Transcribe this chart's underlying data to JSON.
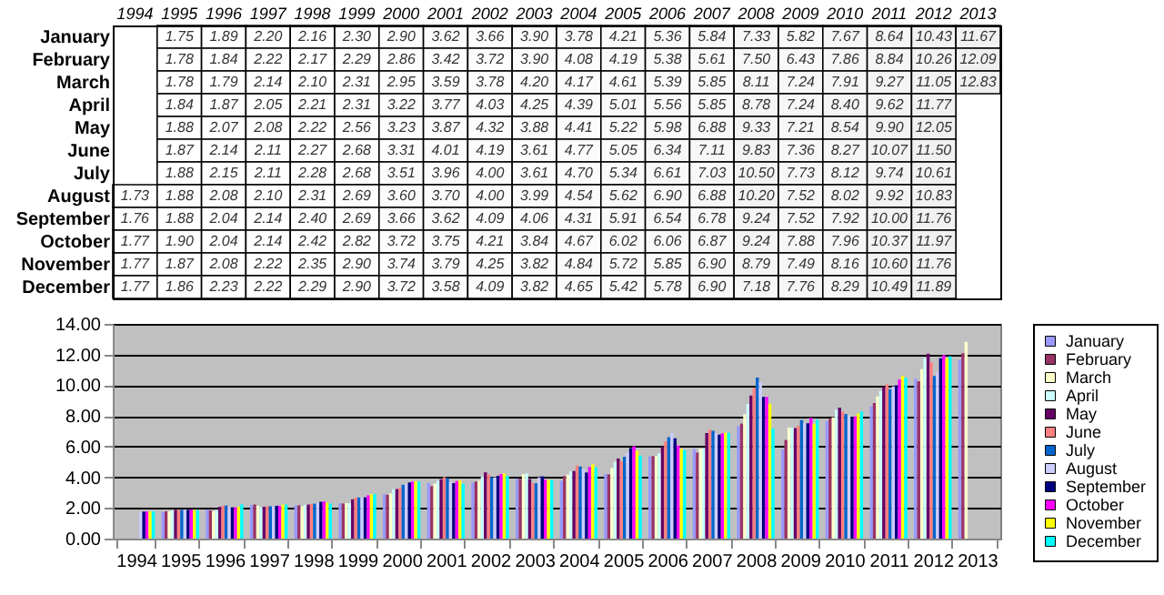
{
  "chart_data": [
    {
      "type": "heatmap",
      "categories": [
        "1994",
        "1995",
        "1996",
        "1997",
        "1998",
        "1999",
        "2000",
        "2001",
        "2002",
        "2003",
        "2004",
        "2005",
        "2006",
        "2007",
        "2008",
        "2009",
        "2010",
        "2011",
        "2012",
        "2013"
      ],
      "y_categories": [
        "January",
        "February",
        "March",
        "April",
        "May",
        "June",
        "July",
        "August",
        "September",
        "October",
        "November",
        "December"
      ],
      "cells": [
        [
          null,
          1.75,
          1.89,
          2.2,
          2.16,
          2.3,
          2.9,
          3.62,
          3.66,
          3.9,
          3.78,
          4.21,
          5.36,
          5.84,
          7.33,
          5.82,
          7.67,
          8.64,
          10.43,
          11.67
        ],
        [
          null,
          1.78,
          1.84,
          2.22,
          2.17,
          2.29,
          2.86,
          3.42,
          3.72,
          3.9,
          4.08,
          4.19,
          5.38,
          5.61,
          7.5,
          6.43,
          7.86,
          8.84,
          10.26,
          12.09
        ],
        [
          null,
          1.78,
          1.79,
          2.14,
          2.1,
          2.31,
          2.95,
          3.59,
          3.78,
          4.2,
          4.17,
          4.61,
          5.39,
          5.85,
          8.11,
          7.24,
          7.91,
          9.27,
          11.05,
          12.83
        ],
        [
          null,
          1.84,
          1.87,
          2.05,
          2.21,
          2.31,
          3.22,
          3.77,
          4.03,
          4.25,
          4.39,
          5.01,
          5.56,
          5.85,
          8.78,
          7.24,
          8.4,
          9.62,
          11.77,
          null
        ],
        [
          null,
          1.88,
          2.07,
          2.08,
          2.22,
          2.56,
          3.23,
          3.87,
          4.32,
          3.88,
          4.41,
          5.22,
          5.98,
          6.88,
          9.33,
          7.21,
          8.54,
          9.9,
          12.05,
          null
        ],
        [
          null,
          1.87,
          2.14,
          2.11,
          2.27,
          2.68,
          3.31,
          4.01,
          4.19,
          3.61,
          4.77,
          5.05,
          6.34,
          7.11,
          9.83,
          7.36,
          8.27,
          10.07,
          11.5,
          null
        ],
        [
          null,
          1.88,
          2.15,
          2.11,
          2.28,
          2.68,
          3.51,
          3.96,
          4.0,
          3.61,
          4.7,
          5.34,
          6.61,
          7.03,
          10.5,
          7.73,
          8.12,
          9.74,
          10.61,
          null
        ],
        [
          1.73,
          1.88,
          2.08,
          2.1,
          2.31,
          2.69,
          3.6,
          3.7,
          4.0,
          3.99,
          4.54,
          5.62,
          6.9,
          6.88,
          10.2,
          7.52,
          8.02,
          9.92,
          10.83,
          null
        ],
        [
          1.76,
          1.88,
          2.04,
          2.14,
          2.4,
          2.69,
          3.66,
          3.62,
          4.09,
          4.06,
          4.31,
          5.91,
          6.54,
          6.78,
          9.24,
          7.52,
          7.92,
          10.0,
          11.76,
          null
        ],
        [
          1.77,
          1.9,
          2.04,
          2.14,
          2.42,
          2.82,
          3.72,
          3.75,
          4.21,
          3.84,
          4.67,
          6.02,
          6.06,
          6.87,
          9.24,
          7.88,
          7.96,
          10.37,
          11.97,
          null
        ],
        [
          1.77,
          1.87,
          2.08,
          2.22,
          2.35,
          2.9,
          3.74,
          3.79,
          4.25,
          3.82,
          4.84,
          5.72,
          5.85,
          6.9,
          8.79,
          7.49,
          8.16,
          10.6,
          11.76,
          null
        ],
        [
          1.77,
          1.86,
          2.23,
          2.22,
          2.29,
          2.9,
          3.72,
          3.58,
          4.09,
          3.82,
          4.65,
          5.42,
          5.78,
          6.9,
          7.18,
          7.76,
          8.29,
          10.49,
          11.89,
          null
        ]
      ],
      "data_labels": true,
      "cell_labels": [
        [
          null,
          "1.75",
          "1.89",
          "2.20",
          "2.16",
          "2.30",
          "2.90",
          "3.62",
          "3.66",
          "3.90",
          "3.78",
          "4.21",
          "5.36",
          "5.84",
          "7.33",
          "5.82",
          "7.67",
          "8.64",
          "10.43",
          "11.67"
        ],
        [
          null,
          "1.78",
          "1.84",
          "2.22",
          "2.17",
          "2.29",
          "2.86",
          "3.42",
          "3.72",
          "3.90",
          "4.08",
          "4.19",
          "5.38",
          "5.61",
          "7.50",
          "6.43",
          "7.86",
          "8.84",
          "10.26",
          "12.09"
        ],
        [
          null,
          "1.78",
          "1.79",
          "2.14",
          "2.10",
          "2.31",
          "2.95",
          "3.59",
          "3.78",
          "4.20",
          "4.17",
          "4.61",
          "5.39",
          "5.85",
          "8.11",
          "7.24",
          "7.91",
          "9.27",
          "11.05",
          "12.83"
        ],
        [
          null,
          "1.84",
          "1.87",
          "2.05",
          "2.21",
          "2.31",
          "3.22",
          "3.77",
          "4.03",
          "4.25",
          "4.39",
          "5.01",
          "5.56",
          "5.85",
          "8.78",
          "7.24",
          "8.40",
          "9.62",
          "11.77",
          null
        ],
        [
          null,
          "1.88",
          "2.07",
          "2.08",
          "2.22",
          "2.56",
          "3.23",
          "3.87",
          "4.32",
          "3.88",
          "4.41",
          "5.22",
          "5.98",
          "6.88",
          "9.33",
          "7.21",
          "8.54",
          "9.90",
          "12.05",
          null
        ],
        [
          null,
          "1.87",
          "2.14",
          "2.11",
          "2.27",
          "2.68",
          "3.31",
          "4.01",
          "4.19",
          "3.61",
          "4.77",
          "5.05",
          "6.34",
          "7.11",
          "9.83",
          "7.36",
          "8.27",
          "10.07",
          "11.50",
          null
        ],
        [
          null,
          "1.88",
          "2.15",
          "2.11",
          "2.28",
          "2.68",
          "3.51",
          "3.96",
          "4.00",
          "3.61",
          "4.70",
          "5.34",
          "6.61",
          "7.03",
          "10.50",
          "7.73",
          "8.12",
          "9.74",
          "10.61",
          null
        ],
        [
          "1.73",
          "1.88",
          "2.08",
          "2.10",
          "2.31",
          "2.69",
          "3.60",
          "3.70",
          "4.00",
          "3.99",
          "4.54",
          "5.62",
          "6.90",
          "6.88",
          "10.20",
          "7.52",
          "8.02",
          "9.92",
          "10.83",
          null
        ],
        [
          "1.76",
          "1.88",
          "2.04",
          "2.14",
          "2.40",
          "2.69",
          "3.66",
          "3.62",
          "4.09",
          "4.06",
          "4.31",
          "5.91",
          "6.54",
          "6.78",
          "9.24",
          "7.52",
          "7.92",
          "10.00",
          "11.76",
          null
        ],
        [
          "1.77",
          "1.90",
          "2.04",
          "2.14",
          "2.42",
          "2.82",
          "3.72",
          "3.75",
          "4.21",
          "3.84",
          "4.67",
          "6.02",
          "6.06",
          "6.87",
          "9.24",
          "7.88",
          "7.96",
          "10.37",
          "11.97",
          null
        ],
        [
          "1.77",
          "1.87",
          "2.08",
          "2.22",
          "2.35",
          "2.90",
          "3.74",
          "3.79",
          "4.25",
          "3.82",
          "4.84",
          "5.72",
          "5.85",
          "6.90",
          "8.79",
          "7.49",
          "8.16",
          "10.60",
          "11.76",
          null
        ],
        [
          "1.77",
          "1.86",
          "2.23",
          "2.22",
          "2.29",
          "2.90",
          "3.72",
          "3.58",
          "4.09",
          "3.82",
          "4.65",
          "5.42",
          "5.78",
          "6.90",
          "7.18",
          "7.76",
          "8.29",
          "10.49",
          "11.89",
          null
        ]
      ]
    },
    {
      "type": "bar",
      "categories": [
        "1994",
        "1995",
        "1996",
        "1997",
        "1998",
        "1999",
        "2000",
        "2001",
        "2002",
        "2003",
        "2004",
        "2005",
        "2006",
        "2007",
        "2008",
        "2009",
        "2010",
        "2011",
        "2012",
        "2013"
      ],
      "series": [
        {
          "name": "January",
          "color": "#9999ff",
          "values": [
            null,
            1.75,
            1.89,
            2.2,
            2.16,
            2.3,
            2.9,
            3.62,
            3.66,
            3.9,
            3.78,
            4.21,
            5.36,
            5.84,
            7.33,
            5.82,
            7.67,
            8.64,
            10.43,
            11.67
          ]
        },
        {
          "name": "February",
          "color": "#993366",
          "values": [
            null,
            1.78,
            1.84,
            2.22,
            2.17,
            2.29,
            2.86,
            3.42,
            3.72,
            3.9,
            4.08,
            4.19,
            5.38,
            5.61,
            7.5,
            6.43,
            7.86,
            8.84,
            10.26,
            12.09
          ]
        },
        {
          "name": "March",
          "color": "#ffffcc",
          "values": [
            null,
            1.78,
            1.79,
            2.14,
            2.1,
            2.31,
            2.95,
            3.59,
            3.78,
            4.2,
            4.17,
            4.61,
            5.39,
            5.85,
            8.11,
            7.24,
            7.91,
            9.27,
            11.05,
            12.83
          ]
        },
        {
          "name": "April",
          "color": "#ccffff",
          "values": [
            null,
            1.84,
            1.87,
            2.05,
            2.21,
            2.31,
            3.22,
            3.77,
            4.03,
            4.25,
            4.39,
            5.01,
            5.56,
            5.85,
            8.78,
            7.24,
            8.4,
            9.62,
            11.77,
            null
          ]
        },
        {
          "name": "May",
          "color": "#660066",
          "values": [
            null,
            1.88,
            2.07,
            2.08,
            2.22,
            2.56,
            3.23,
            3.87,
            4.32,
            3.88,
            4.41,
            5.22,
            5.98,
            6.88,
            9.33,
            7.21,
            8.54,
            9.9,
            12.05,
            null
          ]
        },
        {
          "name": "June",
          "color": "#ff8080",
          "values": [
            null,
            1.87,
            2.14,
            2.11,
            2.27,
            2.68,
            3.31,
            4.01,
            4.19,
            3.61,
            4.77,
            5.05,
            6.34,
            7.11,
            9.83,
            7.36,
            8.27,
            10.07,
            11.5,
            null
          ]
        },
        {
          "name": "July",
          "color": "#0066cc",
          "values": [
            null,
            1.88,
            2.15,
            2.11,
            2.28,
            2.68,
            3.51,
            3.96,
            4.0,
            3.61,
            4.7,
            5.34,
            6.61,
            7.03,
            10.5,
            7.73,
            8.12,
            9.74,
            10.61,
            null
          ]
        },
        {
          "name": "August",
          "color": "#ccccff",
          "values": [
            1.73,
            1.88,
            2.08,
            2.1,
            2.31,
            2.69,
            3.6,
            3.7,
            4.0,
            3.99,
            4.54,
            5.62,
            6.9,
            6.88,
            10.2,
            7.52,
            8.02,
            9.92,
            10.83,
            null
          ]
        },
        {
          "name": "September",
          "color": "#000080",
          "values": [
            1.76,
            1.88,
            2.04,
            2.14,
            2.4,
            2.69,
            3.66,
            3.62,
            4.09,
            4.06,
            4.31,
            5.91,
            6.54,
            6.78,
            9.24,
            7.52,
            7.92,
            10.0,
            11.76,
            null
          ]
        },
        {
          "name": "October",
          "color": "#ff00ff",
          "values": [
            1.77,
            1.9,
            2.04,
            2.14,
            2.42,
            2.82,
            3.72,
            3.75,
            4.21,
            3.84,
            4.67,
            6.02,
            6.06,
            6.87,
            9.24,
            7.88,
            7.96,
            10.37,
            11.97,
            null
          ]
        },
        {
          "name": "November",
          "color": "#ffff00",
          "values": [
            1.77,
            1.87,
            2.08,
            2.22,
            2.35,
            2.9,
            3.74,
            3.79,
            4.25,
            3.82,
            4.84,
            5.72,
            5.85,
            6.9,
            8.79,
            7.49,
            8.16,
            10.6,
            11.76,
            null
          ]
        },
        {
          "name": "December",
          "color": "#00ffff",
          "values": [
            1.77,
            1.86,
            2.23,
            2.22,
            2.29,
            2.9,
            3.72,
            3.58,
            4.09,
            3.82,
            4.65,
            5.42,
            5.78,
            6.9,
            7.18,
            7.76,
            8.29,
            10.49,
            11.89,
            null
          ]
        }
      ],
      "ylim": [
        0,
        14
      ],
      "yticks": [
        {
          "value": 0,
          "label": "0.00"
        },
        {
          "value": 2,
          "label": "2.00"
        },
        {
          "value": 4,
          "label": "4.00"
        },
        {
          "value": 6,
          "label": "6.00"
        },
        {
          "value": 8,
          "label": "8.00"
        },
        {
          "value": 10,
          "label": "10.00"
        },
        {
          "value": 12,
          "label": "12.00"
        },
        {
          "value": 14,
          "label": "14.00"
        }
      ],
      "grid": "y",
      "legend": "right"
    }
  ]
}
